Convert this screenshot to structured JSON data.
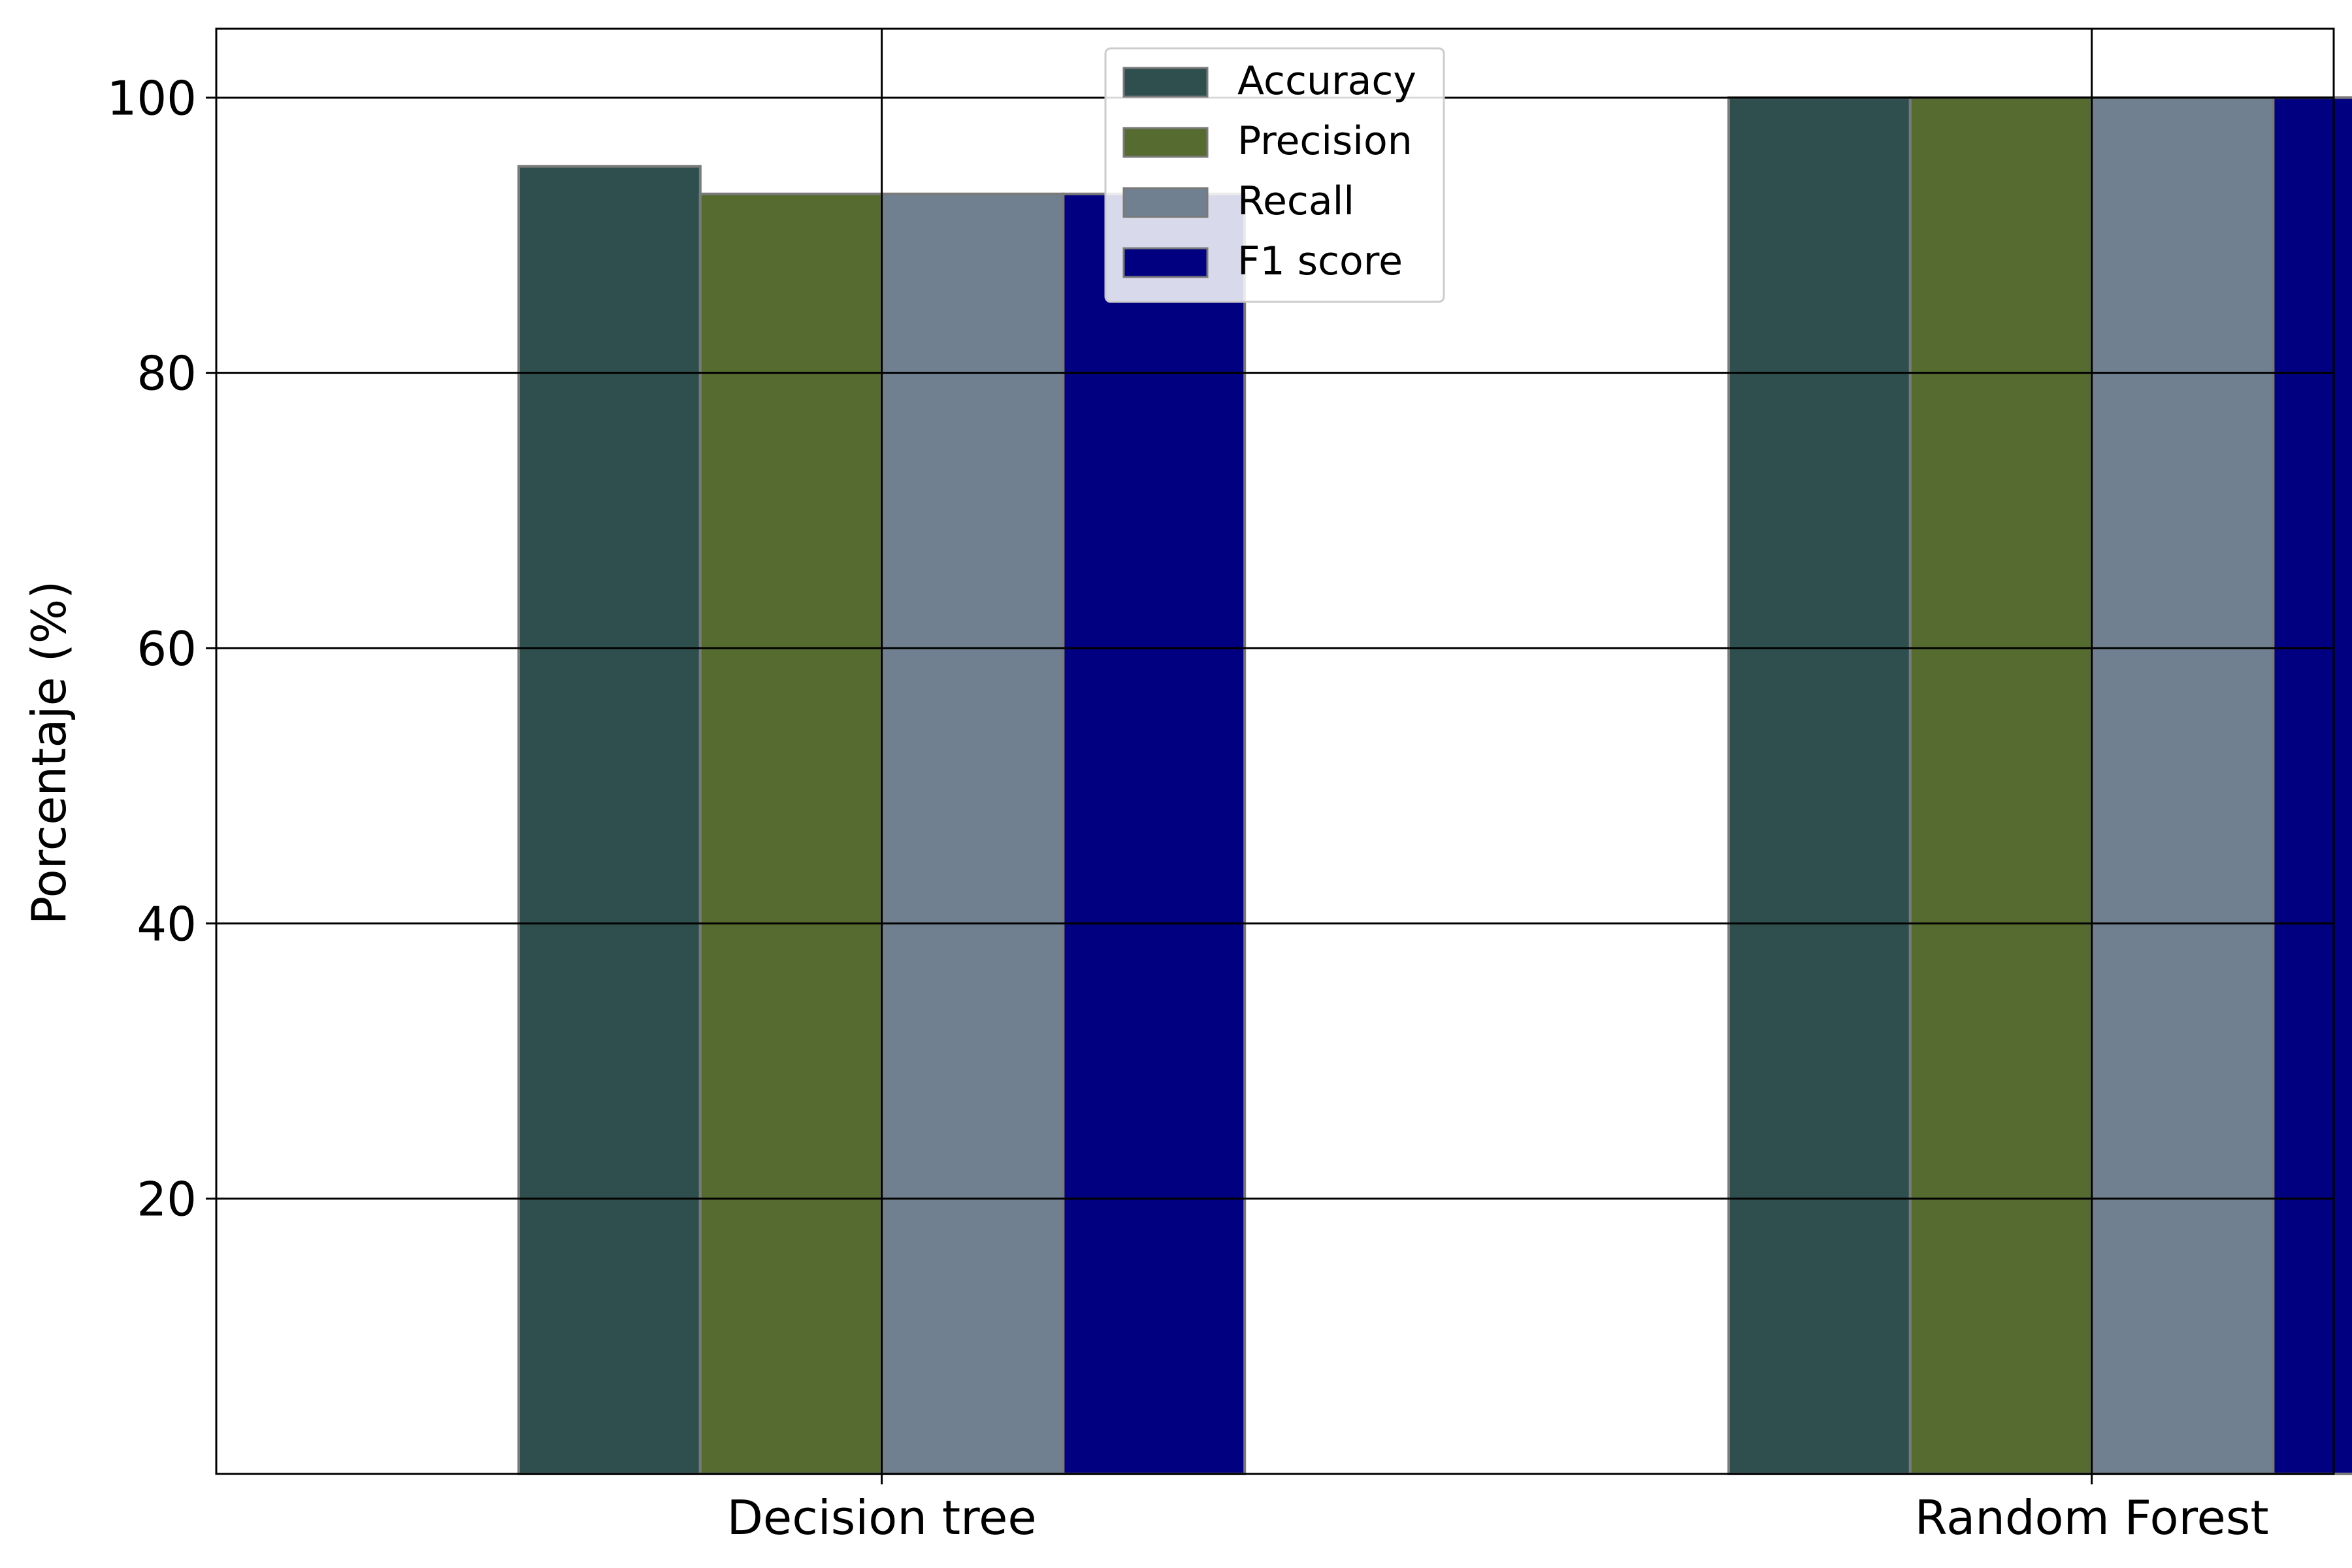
{
  "chart_data": {
    "type": "bar",
    "categories": [
      "Decision tree",
      "Random Forest"
    ],
    "series": [
      {
        "name": "Accuracy",
        "values": [
          95,
          100
        ],
        "color": "#2f4f4f"
      },
      {
        "name": "Precision",
        "values": [
          93,
          100
        ],
        "color": "#556b2f"
      },
      {
        "name": "Recall",
        "values": [
          93,
          100
        ],
        "color": "#708090"
      },
      {
        "name": "F1 score",
        "values": [
          93,
          100
        ],
        "color": "#000080"
      }
    ],
    "xlabel": "",
    "ylabel": "Porcentaje (%)",
    "ylim": [
      0,
      105
    ],
    "yticks": [
      20,
      40,
      60,
      80,
      100
    ],
    "grid": true,
    "legend_position": "top-center"
  }
}
